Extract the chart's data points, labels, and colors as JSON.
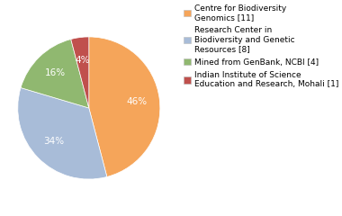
{
  "labels": [
    "Centre for Biodiversity\nGenomics [11]",
    "Research Center in\nBiodiversity and Genetic\nResources [8]",
    "Mined from GenBank, NCBI [4]",
    "Indian Institute of Science\nEducation and Research, Mohali [1]"
  ],
  "values": [
    45,
    33,
    16,
    4
  ],
  "colors": [
    "#f5a55a",
    "#a8bcd8",
    "#90b870",
    "#c0504d"
  ],
  "startangle": 90,
  "background_color": "#ffffff",
  "pct_fontsize": 7.5,
  "legend_fontsize": 6.5
}
